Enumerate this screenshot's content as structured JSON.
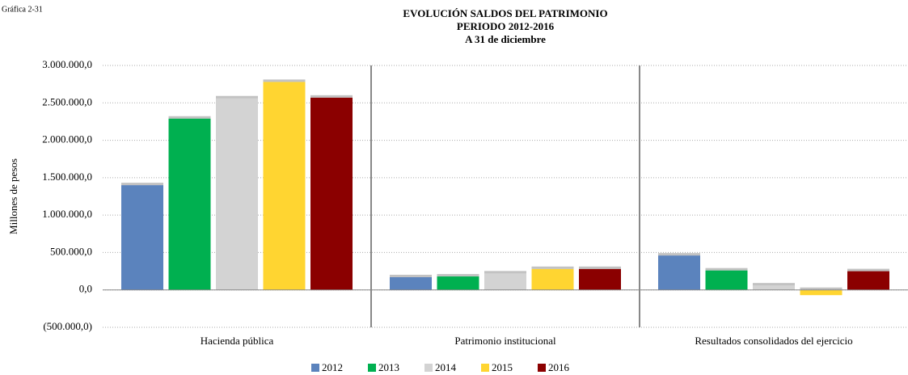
{
  "chart_data": {
    "type": "bar",
    "caption": "Gráfica 2-31",
    "title": "EVOLUCIÓN  SALDOS DEL PATRIMONIO",
    "subtitle": [
      "PERIODO 2012-2016",
      "A 31 de diciembre"
    ],
    "y_label": "Millones de pesos",
    "categories": [
      "Hacienda pública",
      "Patrimonio institucional",
      "Resultados consolidados del ejercicio"
    ],
    "series": [
      {
        "name": "2012",
        "color": "#5b83bd",
        "values": [
          1400000,
          170000,
          460000
        ]
      },
      {
        "name": "2013",
        "color": "#00b050",
        "values": [
          2290000,
          180000,
          260000
        ]
      },
      {
        "name": "2014",
        "color": "#d3d3d3",
        "values": [
          2560000,
          220000,
          60000
        ]
      },
      {
        "name": "2015",
        "color": "#ffd531",
        "values": [
          2780000,
          280000,
          -70000
        ]
      },
      {
        "name": "2016",
        "color": "#8b0000",
        "values": [
          2570000,
          280000,
          250000
        ]
      }
    ],
    "ylim": [
      -500000,
      3000000
    ],
    "yticks": [
      {
        "value": -500000,
        "label": "(500.000,0)"
      },
      {
        "value": 0,
        "label": "0,0"
      },
      {
        "value": 500000,
        "label": "500.000,0"
      },
      {
        "value": 1000000,
        "label": "1.000.000,0"
      },
      {
        "value": 1500000,
        "label": "1.500.000,0"
      },
      {
        "value": 2000000,
        "label": "2.000.000,0"
      },
      {
        "value": 2500000,
        "label": "2.500.000,0"
      },
      {
        "value": 3000000,
        "label": "3.000.000,0"
      }
    ],
    "grid": true,
    "legend": "bottom"
  }
}
